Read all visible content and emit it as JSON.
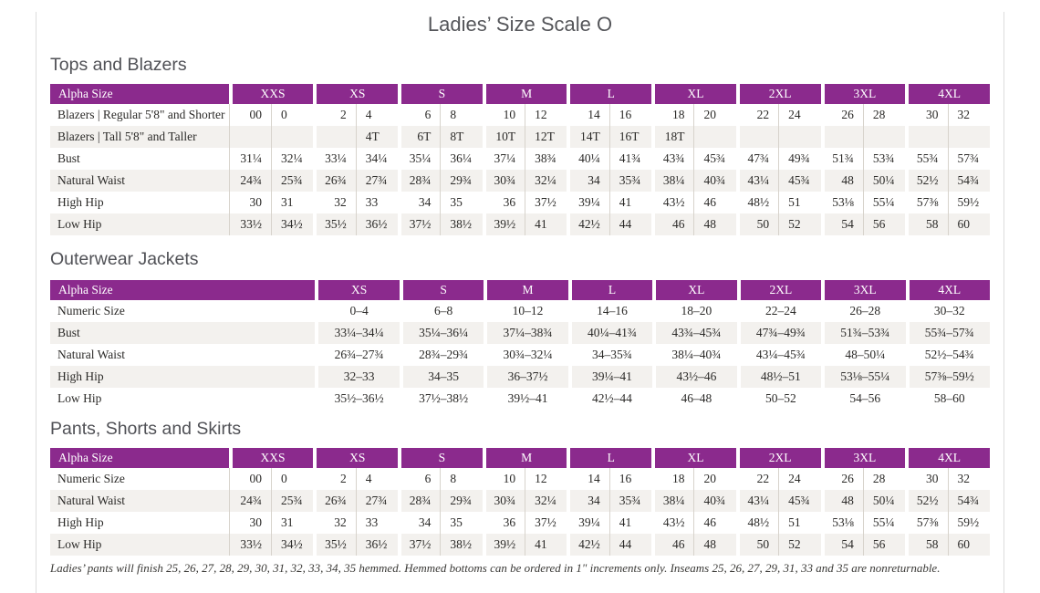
{
  "page": {
    "title": "Ladies’ Size Scale O",
    "footnote": "Ladies’ pants will finish 25, 26, 27, 28, 29, 30, 31, 32, 33, 34, 35 hemmed. Hemmed bottoms can be ordered in 1\" increments only. Inseams 25, 26, 27, 29, 31, 33 and 35 are nonreturnable."
  },
  "colors": {
    "header_bg": "#8b2a8d",
    "stripe_bg": "#f3f1ee",
    "grid_line": "#d7d3cc",
    "heading_text": "#55565a",
    "body_text": "#2b2a28",
    "edge_line": "#dcdcdc"
  },
  "tables": [
    {
      "section_title": "Tops and Blazers",
      "header_label": "Alpha Size",
      "split": true,
      "sizes": [
        "XXS",
        "XS",
        "S",
        "M",
        "L",
        "XL",
        "2XL",
        "3XL",
        "4XL"
      ],
      "rows": [
        {
          "label": "Blazers | Regular 5'8\" and Shorter",
          "values": [
            "00",
            "0",
            "2",
            "4",
            "6",
            "8",
            "10",
            "12",
            "14",
            "16",
            "18",
            "20",
            "22",
            "24",
            "26",
            "28",
            "30",
            "32"
          ]
        },
        {
          "label": "Blazers | Tall 5'8\" and Taller",
          "values": [
            "",
            "",
            "",
            "4T",
            "6T",
            "8T",
            "10T",
            "12T",
            "14T",
            "16T",
            "18T",
            "",
            "",
            "",
            "",
            "",
            "",
            ""
          ]
        },
        {
          "label": "Bust",
          "values": [
            "31¼",
            "32¼",
            "33¼",
            "34¼",
            "35¼",
            "36¼",
            "37¼",
            "38¾",
            "40¼",
            "41¾",
            "43¾",
            "45¾",
            "47¾",
            "49¾",
            "51¾",
            "53¾",
            "55¾",
            "57¾"
          ]
        },
        {
          "label": "Natural Waist",
          "values": [
            "24¾",
            "25¾",
            "26¾",
            "27¾",
            "28¾",
            "29¾",
            "30¾",
            "32¼",
            "34",
            "35¾",
            "38¼",
            "40¾",
            "43¼",
            "45¾",
            "48",
            "50¼",
            "52½",
            "54¾"
          ]
        },
        {
          "label": "High Hip",
          "values": [
            "30",
            "31",
            "32",
            "33",
            "34",
            "35",
            "36",
            "37½",
            "39¼",
            "41",
            "43½",
            "46",
            "48½",
            "51",
            "53⅛",
            "55¼",
            "57⅜",
            "59½"
          ]
        },
        {
          "label": "Low Hip",
          "values": [
            "33½",
            "34½",
            "35½",
            "36½",
            "37½",
            "38½",
            "39½",
            "41",
            "42½",
            "44",
            "46",
            "48",
            "50",
            "52",
            "54",
            "56",
            "58",
            "60"
          ]
        }
      ]
    },
    {
      "section_title": "Outerwear Jackets",
      "header_label": "Alpha Size",
      "split": false,
      "sizes": [
        "XS",
        "S",
        "M",
        "L",
        "XL",
        "2XL",
        "3XL",
        "4XL"
      ],
      "rows": [
        {
          "label": "Numeric Size",
          "values": [
            "0–4",
            "6–8",
            "10–12",
            "14–16",
            "18–20",
            "22–24",
            "26–28",
            "30–32"
          ]
        },
        {
          "label": "Bust",
          "values": [
            "33¼–34¼",
            "35¼–36¼",
            "37¼–38¾",
            "40¼–41¾",
            "43¾–45¾",
            "47¾–49¾",
            "51¾–53¾",
            "55¾–57¾"
          ]
        },
        {
          "label": "Natural Waist",
          "values": [
            "26¾–27¾",
            "28¾–29¾",
            "30¾–32¼",
            "34–35¾",
            "38¼–40¾",
            "43¼–45¾",
            "48–50¼",
            "52½–54¾"
          ]
        },
        {
          "label": "High Hip",
          "values": [
            "32–33",
            "34–35",
            "36–37½",
            "39¼–41",
            "43½–46",
            "48½–51",
            "53⅛–55¼",
            "57⅜–59½"
          ]
        },
        {
          "label": "Low Hip",
          "values": [
            "35½–36½",
            "37½–38½",
            "39½–41",
            "42½–44",
            "46–48",
            "50–52",
            "54–56",
            "58–60"
          ]
        }
      ]
    },
    {
      "section_title": "Pants, Shorts and Skirts",
      "header_label": "Alpha Size",
      "split": true,
      "sizes": [
        "XXS",
        "XS",
        "S",
        "M",
        "L",
        "XL",
        "2XL",
        "3XL",
        "4XL"
      ],
      "rows": [
        {
          "label": "Numeric Size",
          "values": [
            "00",
            "0",
            "2",
            "4",
            "6",
            "8",
            "10",
            "12",
            "14",
            "16",
            "18",
            "20",
            "22",
            "24",
            "26",
            "28",
            "30",
            "32"
          ]
        },
        {
          "label": "Natural Waist",
          "values": [
            "24¾",
            "25¾",
            "26¾",
            "27¾",
            "28¾",
            "29¾",
            "30¾",
            "32¼",
            "34",
            "35¾",
            "38¼",
            "40¾",
            "43¼",
            "45¾",
            "48",
            "50¼",
            "52½",
            "54¾"
          ]
        },
        {
          "label": "High Hip",
          "values": [
            "30",
            "31",
            "32",
            "33",
            "34",
            "35",
            "36",
            "37½",
            "39¼",
            "41",
            "43½",
            "46",
            "48½",
            "51",
            "53⅛",
            "55¼",
            "57⅜",
            "59½"
          ]
        },
        {
          "label": "Low Hip",
          "values": [
            "33½",
            "34½",
            "35½",
            "36½",
            "37½",
            "38½",
            "39½",
            "41",
            "42½",
            "44",
            "46",
            "48",
            "50",
            "52",
            "54",
            "56",
            "58",
            "60"
          ]
        }
      ]
    }
  ]
}
